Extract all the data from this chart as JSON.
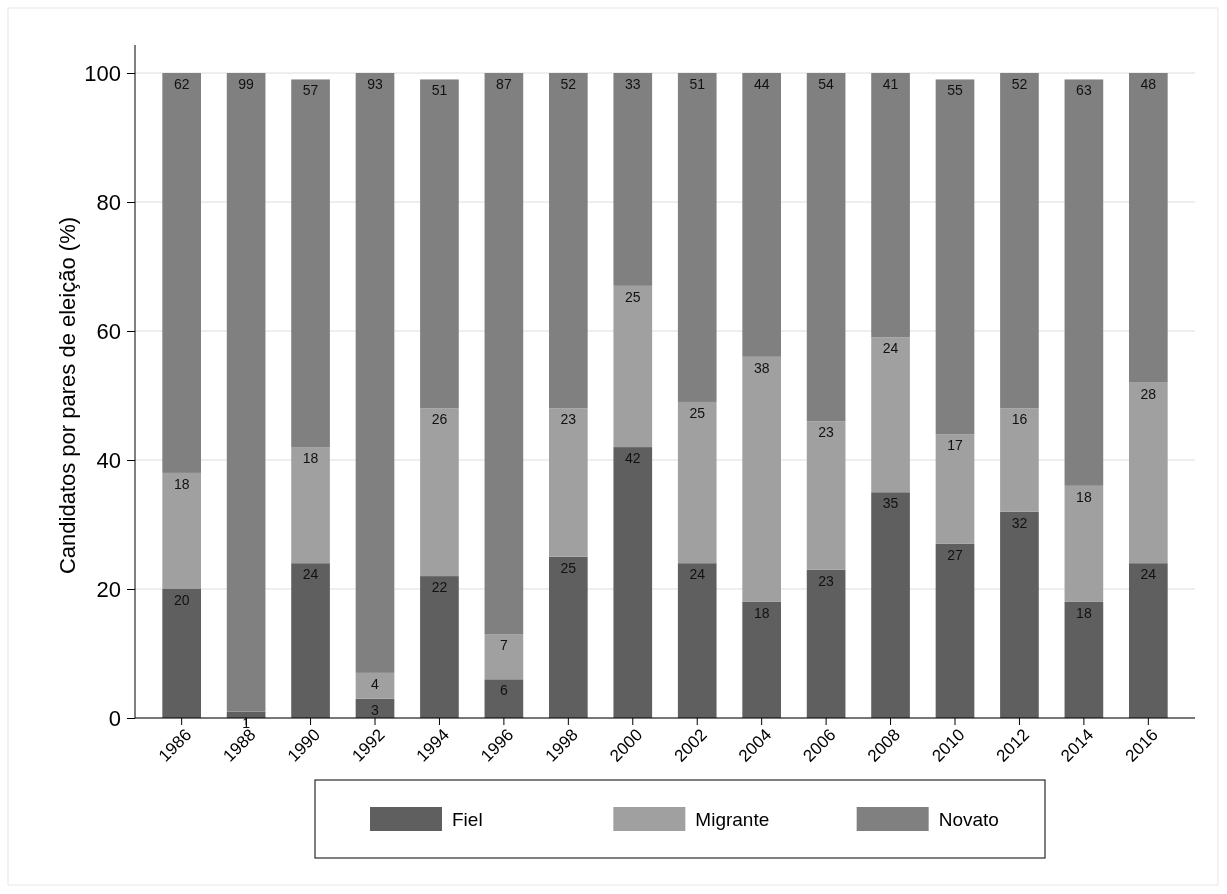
{
  "chart_data": {
    "type": "bar",
    "stacked": true,
    "ylabel": "Candidatos por pares de eleição (%)",
    "categories": [
      "1986",
      "1988",
      "1990",
      "1992",
      "1994",
      "1996",
      "1998",
      "2000",
      "2002",
      "2004",
      "2006",
      "2008",
      "2010",
      "2012",
      "2014",
      "2016"
    ],
    "series": [
      {
        "name": "Fiel",
        "color": "#5f5f5f",
        "values": [
          20,
          1,
          24,
          3,
          22,
          6,
          25,
          42,
          24,
          18,
          23,
          35,
          27,
          32,
          18,
          24
        ]
      },
      {
        "name": "Migrante",
        "color": "#a0a0a0",
        "values": [
          18,
          null,
          18,
          4,
          26,
          7,
          23,
          25,
          25,
          38,
          23,
          24,
          17,
          16,
          18,
          28
        ]
      },
      {
        "name": "Novato",
        "color": "#808080",
        "values": [
          62,
          99,
          57,
          93,
          51,
          87,
          52,
          33,
          51,
          44,
          54,
          41,
          55,
          52,
          63,
          48
        ]
      }
    ],
    "ylim": [
      0,
      100
    ],
    "yticks": [
      0,
      20,
      40,
      60,
      80,
      100
    ],
    "grid": "y",
    "legend": "bottom",
    "data_labels": true
  }
}
